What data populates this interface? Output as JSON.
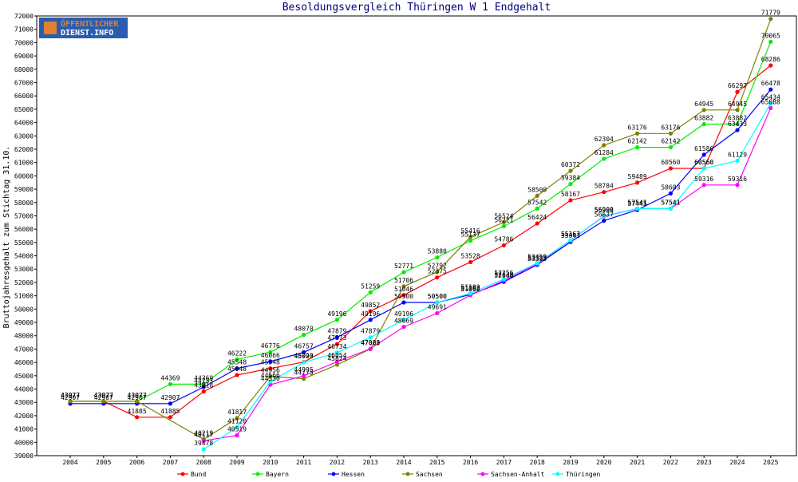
{
  "logo": {
    "line1": "ÖFFENTLICHER",
    "line2": "DIENST.INFO"
  },
  "chart_data": {
    "type": "line",
    "title": "Besoldungsvergleich Thüringen W 1 Endgehalt",
    "xlabel": "",
    "ylabel": "Bruttojahresgehalt zum Stichtag 31.10.",
    "x": [
      "2004",
      "2005",
      "2006",
      "2007",
      "2008",
      "2009",
      "2010",
      "2011",
      "2012",
      "2013",
      "2014",
      "2015",
      "2016",
      "2017",
      "2018",
      "2019",
      "2020",
      "2021",
      "2022",
      "2023",
      "2024",
      "2025"
    ],
    "ylim": [
      39000,
      72000
    ],
    "ytick_step": 1000,
    "grid": false,
    "legend": "bottom",
    "series": [
      {
        "name": "Bund",
        "color": "#ff0000",
        "values": [
          43077,
          43077,
          41885,
          41885,
          43818,
          45048,
          45548,
          46023,
          47373,
          49852,
          51046,
          52375,
          53528,
          54786,
          56424,
          58167,
          58784,
          59489,
          60560,
          60560,
          66297,
          68286
        ]
      },
      {
        "name": "Bayern",
        "color": "#00ee00",
        "values": [
          43077,
          43077,
          43077,
          44369,
          44369,
          46222,
          46776,
          48070,
          49196,
          51259,
          52771,
          53880,
          55137,
          56221,
          57542,
          59384,
          61284,
          62142,
          62142,
          63882,
          63882,
          70065
        ]
      },
      {
        "name": "Hessen",
        "color": "#0000ff",
        "values": [
          42907,
          42907,
          42907,
          42907,
          44153,
          45548,
          46066,
          46757,
          47879,
          49196,
          50500,
          50500,
          51088,
          52046,
          53323,
          55043,
          56637,
          57445,
          58683,
          61586,
          63433,
          66478
        ]
      },
      {
        "name": "Sachsen",
        "color": "#808000",
        "values": [
          43077,
          43077,
          43077,
          null,
          40219,
          41817,
          44956,
          44775,
          45824,
          47000,
          51706,
          52792,
          55416,
          56524,
          58500,
          60372,
          62304,
          63176,
          63176,
          64945,
          64945,
          71779
        ]
      },
      {
        "name": "Sachsen-Anhalt",
        "color": "#ff00ff",
        "values": [
          null,
          null,
          null,
          null,
          40117,
          40519,
          44330,
          44995,
          46054,
          47023,
          48669,
          49691,
          51052,
          52138,
          53385,
          55167,
          56969,
          57541,
          57541,
          59316,
          59316,
          65088
        ]
      },
      {
        "name": "Thüringen",
        "color": "#00ffff",
        "values": [
          null,
          null,
          null,
          null,
          39478,
          41120,
          44566,
          45999,
          46734,
          47879,
          49196,
          50500,
          51182,
          52256,
          53459,
          55167,
          56998,
          57541,
          57541,
          60560,
          61129,
          65434
        ]
      }
    ]
  }
}
